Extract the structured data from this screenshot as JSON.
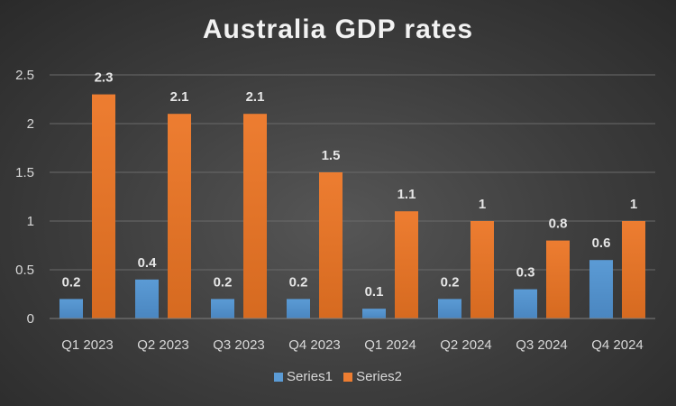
{
  "chart_data": {
    "type": "bar",
    "title": "Australia GDP rates",
    "categories": [
      "Q1 2023",
      "Q2 2023",
      "Q3 2023",
      "Q4 2023",
      "Q1 2024",
      "Q2 2024",
      "Q3 2024",
      "Q4 2024"
    ],
    "series": [
      {
        "name": "Series1",
        "values": [
          0.2,
          0.4,
          0.2,
          0.2,
          0.1,
          0.2,
          0.3,
          0.6
        ],
        "color": "#5b9bd5",
        "color_dark": "#4a86c0"
      },
      {
        "name": "Series2",
        "values": [
          2.3,
          2.1,
          2.1,
          1.5,
          1.1,
          1.0,
          0.8,
          1.0
        ],
        "color": "#ed7d31",
        "color_dark": "#d66a20"
      }
    ],
    "ylim": [
      0,
      2.5
    ],
    "yticks": [
      "0",
      "0.5",
      "1",
      "1.5",
      "2",
      "2.5"
    ],
    "ytick_values": [
      0,
      0.5,
      1,
      1.5,
      2,
      2.5
    ],
    "xlabel": "",
    "ylabel": "",
    "grid": true,
    "legend_position": "bottom",
    "data_labels": true
  }
}
